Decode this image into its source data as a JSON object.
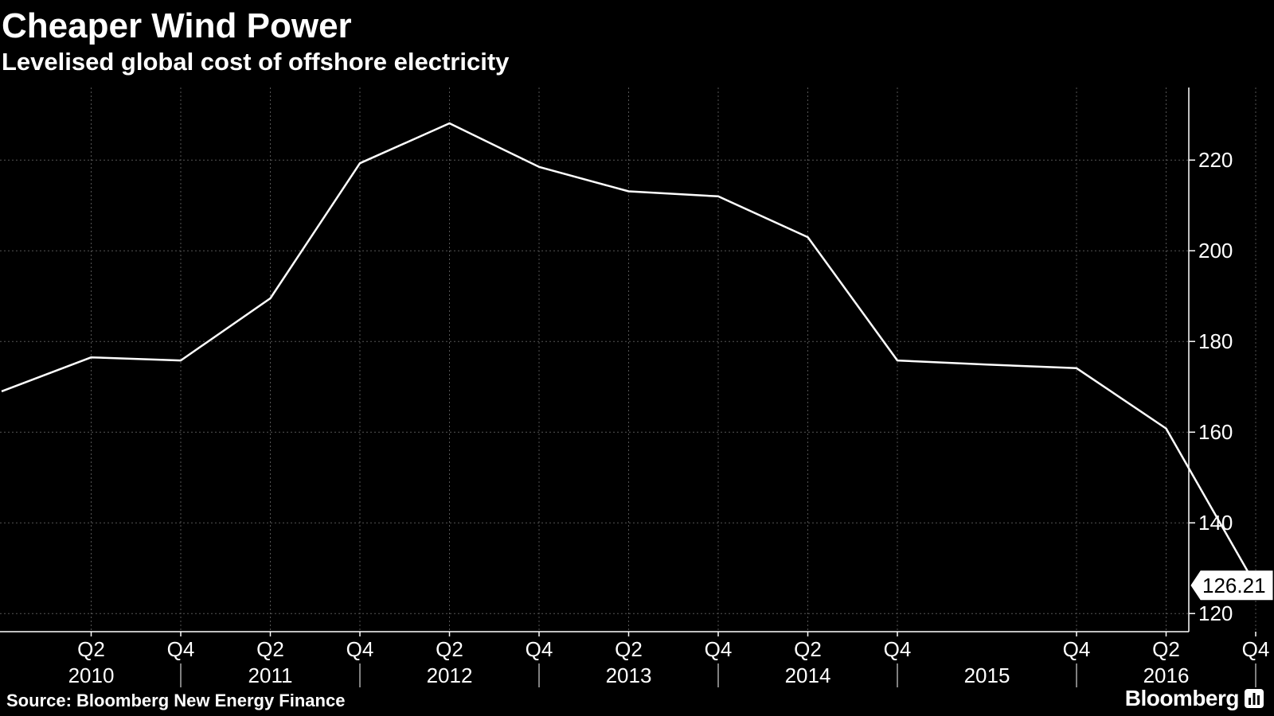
{
  "header": {
    "title": "Cheaper Wind Power",
    "subtitle": "Levelised global cost of offshore electricity"
  },
  "footer": {
    "source": "Source: Bloomberg New Energy Finance",
    "brand": "Bloomberg"
  },
  "icons": {
    "brand_icon": "bloomberg-terminal-icon"
  },
  "colors": {
    "background": "#000000",
    "line": "#ffffff",
    "grid": "#555555",
    "text": "#ffffff"
  },
  "chart_data": {
    "type": "line",
    "title": "Cheaper Wind Power",
    "subtitle": "Levelised global cost of offshore electricity",
    "xlabel": "",
    "ylabel": "",
    "x": [
      "2009 Q4",
      "2010 Q2",
      "2010 Q4",
      "2011 Q2",
      "2011 Q4",
      "2012 Q2",
      "2012 Q4",
      "2013 Q2",
      "2013 Q4",
      "2014 Q2",
      "2014 Q4",
      "2015 Q2",
      "2015 Q4",
      "2016 Q2",
      "2016 Q4"
    ],
    "series": [
      {
        "values": [
          169,
          176.5,
          175.8,
          189.5,
          219.3,
          228.1,
          218.5,
          213.1,
          212,
          203,
          175.8,
          174.9,
          174.1,
          160.8,
          126.21
        ]
      }
    ],
    "last_value_label": "126.21",
    "ylim": [
      116,
      236
    ],
    "y_ticks": [
      120,
      140,
      160,
      180,
      200,
      220
    ],
    "x_tick_labels": [
      {
        "x": "2010 Q2",
        "label": "Q2"
      },
      {
        "x": "2010 Q4",
        "label": "Q4"
      },
      {
        "x": "2011 Q2",
        "label": "Q2"
      },
      {
        "x": "2011 Q4",
        "label": "Q4"
      },
      {
        "x": "2012 Q2",
        "label": "Q2"
      },
      {
        "x": "2012 Q4",
        "label": "Q4"
      },
      {
        "x": "2013 Q2",
        "label": "Q2"
      },
      {
        "x": "2013 Q4",
        "label": "Q4"
      },
      {
        "x": "2014 Q2",
        "label": "Q2"
      },
      {
        "x": "2014 Q4",
        "label": "Q4"
      },
      {
        "x": "2015 Q4",
        "label": "Q4"
      },
      {
        "x": "2016 Q2",
        "label": "Q2"
      },
      {
        "x": "2016 Q4",
        "label": "Q4"
      }
    ],
    "year_labels": [
      {
        "x": "2010 Q2",
        "label": "2010"
      },
      {
        "x": "2011 Q2",
        "label": "2011"
      },
      {
        "x": "2012 Q2",
        "label": "2012"
      },
      {
        "x": "2013 Q2",
        "label": "2013"
      },
      {
        "x": "2014 Q2",
        "label": "2014"
      },
      {
        "x": "2015 Q2",
        "label": "2015"
      },
      {
        "x": "2016 Q2",
        "label": "2016"
      }
    ],
    "year_separators": [
      "2010 Q4",
      "2011 Q4",
      "2012 Q4",
      "2013 Q4",
      "2014 Q4",
      "2015 Q4",
      "2016 Q4"
    ],
    "grid": true,
    "y_axis_position": "right",
    "legend": "none"
  }
}
